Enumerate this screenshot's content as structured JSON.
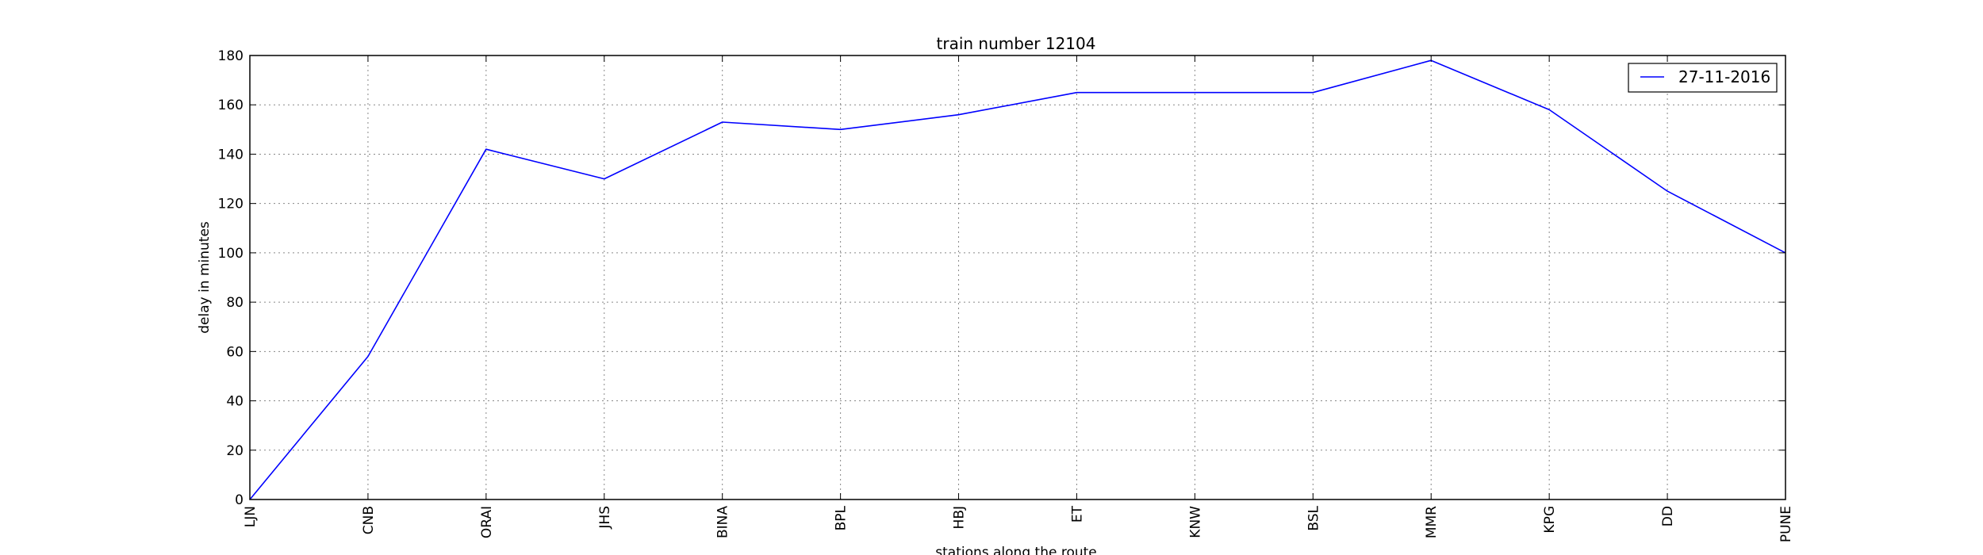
{
  "chart_data": {
    "type": "line",
    "title": "train number 12104",
    "xlabel": "stations along the route",
    "ylabel": "delay in minutes",
    "categories": [
      "LJN",
      "CNB",
      "ORAI",
      "JHS",
      "BINA",
      "BPL",
      "HBJ",
      "ET",
      "KNW",
      "BSL",
      "MMR",
      "KPG",
      "DD",
      "PUNE"
    ],
    "series": [
      {
        "name": "27-11-2016",
        "values": [
          0,
          58,
          142,
          130,
          153,
          150,
          156,
          165,
          165,
          165,
          178,
          158,
          125,
          100
        ],
        "color": "#0000ff"
      }
    ],
    "ylim": [
      0,
      180
    ],
    "yticks": [
      0,
      20,
      40,
      60,
      80,
      100,
      120,
      140,
      160,
      180
    ],
    "grid": true,
    "legend_position": "top-right"
  }
}
